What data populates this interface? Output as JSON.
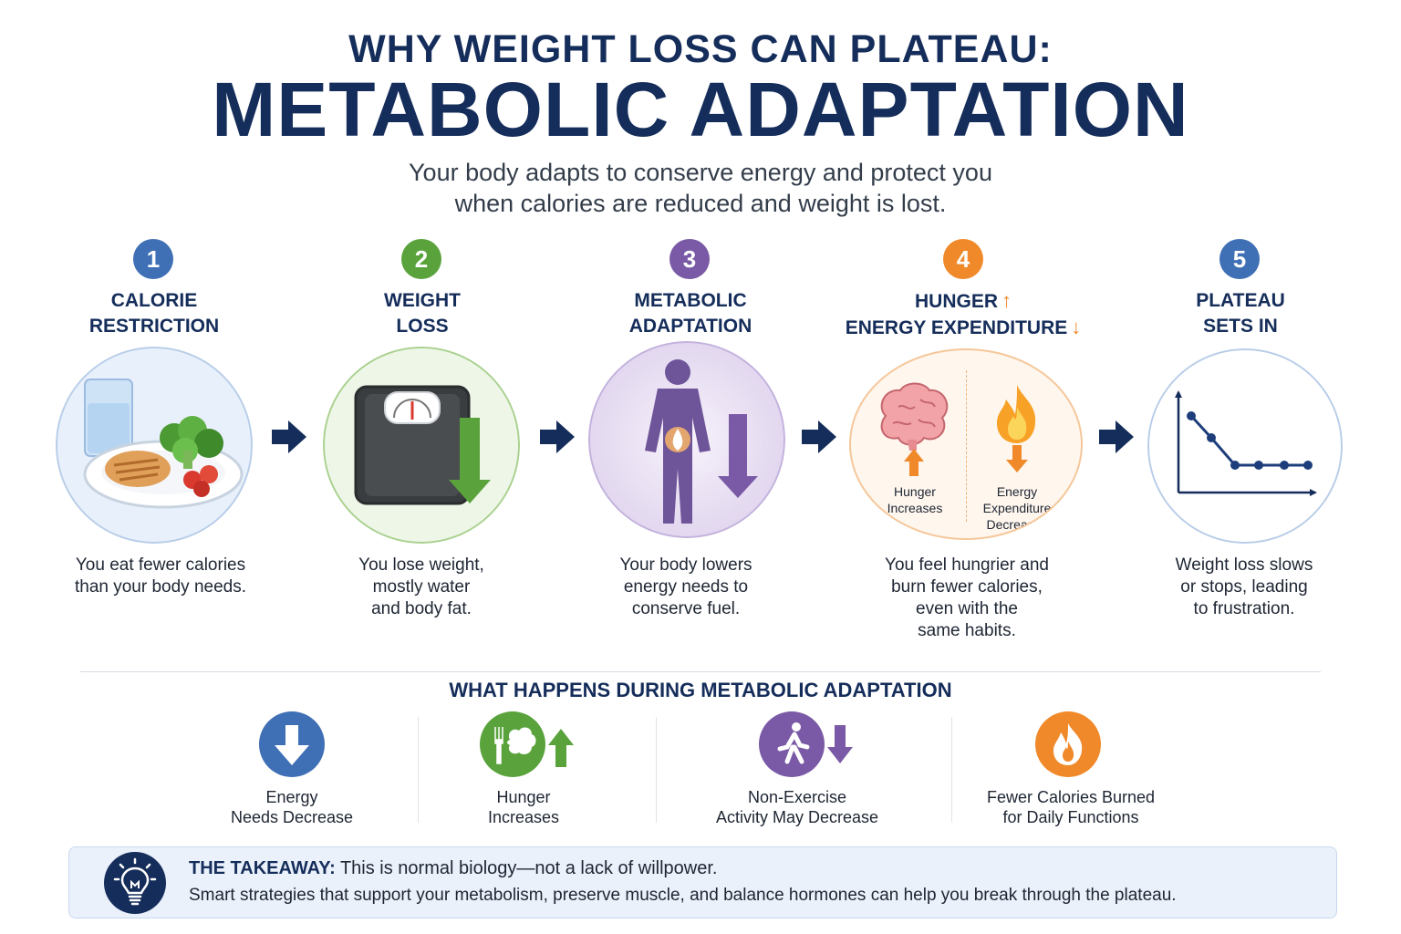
{
  "header": {
    "title_top": "WHY WEIGHT LOSS CAN PLATEAU:",
    "title_main": "METABOLIC ADAPTATION",
    "subtitle_line1": "Your body adapts to conserve energy and protect you",
    "subtitle_line2": "when calories are reduced and weight is lost."
  },
  "steps": [
    {
      "number": "1",
      "title_line1": "CALORIE",
      "title_line2": "RESTRICTION",
      "desc_lines": [
        "You eat fewer calories",
        "than your body needs."
      ],
      "color": "#3f6fb5"
    },
    {
      "number": "2",
      "title_line1": "WEIGHT",
      "title_line2": "LOSS",
      "desc_lines": [
        "You lose weight,",
        "mostly water",
        "and body fat."
      ],
      "color": "#5aa33c"
    },
    {
      "number": "3",
      "title_line1": "METABOLIC",
      "title_line2": "ADAPTATION",
      "desc_lines": [
        "Your body lowers",
        "energy needs to",
        "conserve fuel."
      ],
      "color": "#7a5aa6"
    },
    {
      "number": "4",
      "title_line1": "HUNGER",
      "title_line2": "ENERGY EXPENDITURE",
      "title_line1_arrow": "↑",
      "title_line2_arrow": "↓",
      "desc_lines": [
        "You feel hungrier and",
        "burn fewer calories,",
        "even with the",
        "same habits."
      ],
      "inner_left_lines": [
        "Hunger",
        "Increases"
      ],
      "inner_right_lines": [
        "Energy",
        "Expenditure",
        "Decreases"
      ],
      "color": "#f0892a"
    },
    {
      "number": "5",
      "title_line1": "PLATEAU",
      "title_line2": "SETS IN",
      "desc_lines": [
        "Weight loss slows",
        "or stops, leading",
        "to frustration."
      ],
      "color": "#3f6fb5"
    }
  ],
  "adaptation": {
    "section_title": "WHAT HAPPENS DURING METABOLIC ADAPTATION",
    "items": [
      {
        "icon": "arrow-down-icon",
        "lines": [
          "Energy",
          "Needs Decrease"
        ],
        "color": "#3f6fb5"
      },
      {
        "icon": "fork-brain-icon",
        "lines": [
          "Hunger",
          "Increases"
        ],
        "color": "#5aa33c"
      },
      {
        "icon": "walking-person-icon",
        "lines": [
          "Non-Exercise",
          "Activity May Decrease"
        ],
        "color": "#7a5aa6"
      },
      {
        "icon": "flame-icon",
        "lines": [
          "Fewer Calories Burned",
          "for Daily Functions"
        ],
        "color": "#f0892a"
      }
    ]
  },
  "takeaway": {
    "label": "THE TAKEAWAY:",
    "line1": "This is normal biology—not a lack of willpower.",
    "line2": "Smart strategies that support your metabolism, preserve muscle, and balance hormones can help you break through the plateau."
  },
  "colors": {
    "navy": "#152d5a",
    "blue": "#3f6fb5",
    "green": "#5aa33c",
    "purple": "#7a5aa6",
    "orange": "#f0892a"
  }
}
